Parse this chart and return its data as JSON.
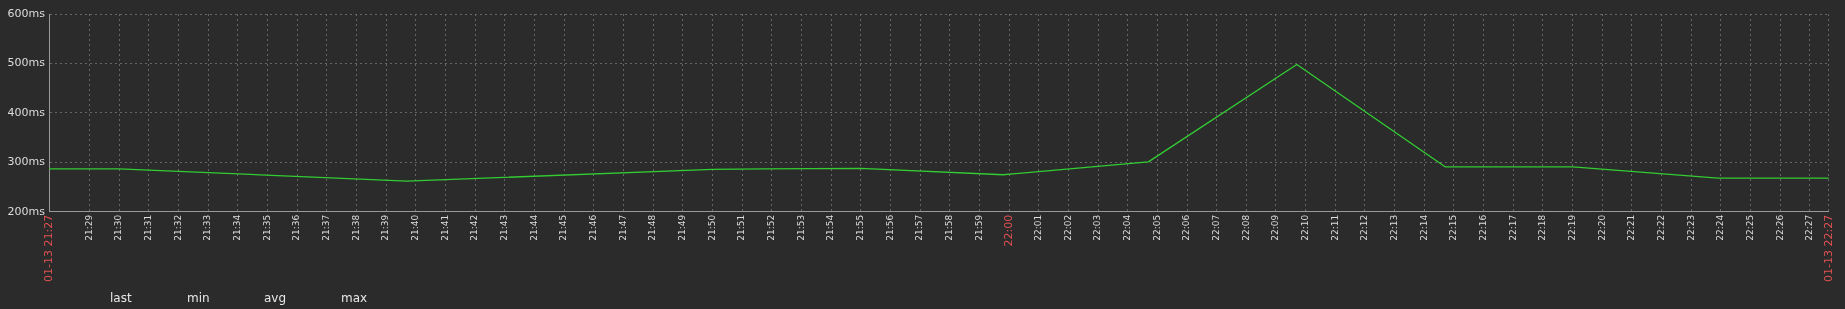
{
  "chart_data": {
    "type": "line",
    "x": [
      21.4606,
      21.5,
      21.6617,
      21.8333,
      21.9167,
      21.9967,
      22.0783,
      22.1617,
      22.245,
      22.3167,
      22.3983,
      22.4606
    ],
    "series": [
      {
        "color": "#33cc33",
        "values": [
          287,
          287,
          262,
          286,
          288,
          275,
          301,
          498,
          291,
          291,
          268,
          268
        ]
      }
    ],
    "xlim": [
      21.4606,
      22.4606
    ],
    "xticks": [
      {
        "value": 21.4606,
        "label": "01-13 21:27"
      },
      {
        "value": 21.4833,
        "label": "21:29"
      },
      {
        "value": 21.5,
        "label": "21:30"
      },
      {
        "value": 21.5167,
        "label": "21:31"
      },
      {
        "value": 21.5333,
        "label": "21:32"
      },
      {
        "value": 21.55,
        "label": "21:33"
      },
      {
        "value": 21.5667,
        "label": "21:34"
      },
      {
        "value": 21.5833,
        "label": "21:35"
      },
      {
        "value": 21.6,
        "label": "21:36"
      },
      {
        "value": 21.6167,
        "label": "21:37"
      },
      {
        "value": 21.6333,
        "label": "21:38"
      },
      {
        "value": 21.65,
        "label": "21:39"
      },
      {
        "value": 21.6667,
        "label": "21:40"
      },
      {
        "value": 21.6833,
        "label": "21:41"
      },
      {
        "value": 21.7,
        "label": "21:42"
      },
      {
        "value": 21.7167,
        "label": "21:43"
      },
      {
        "value": 21.7333,
        "label": "21:44"
      },
      {
        "value": 21.75,
        "label": "21:45"
      },
      {
        "value": 21.7667,
        "label": "21:46"
      },
      {
        "value": 21.7833,
        "label": "21:47"
      },
      {
        "value": 21.8,
        "label": "21:48"
      },
      {
        "value": 21.8167,
        "label": "21:49"
      },
      {
        "value": 21.8333,
        "label": "21:50"
      },
      {
        "value": 21.85,
        "label": "21:51"
      },
      {
        "value": 21.8667,
        "label": "21:52"
      },
      {
        "value": 21.8833,
        "label": "21:53"
      },
      {
        "value": 21.9,
        "label": "21:54"
      },
      {
        "value": 21.9167,
        "label": "21:55"
      },
      {
        "value": 21.9333,
        "label": "21:56"
      },
      {
        "value": 21.95,
        "label": "21:57"
      },
      {
        "value": 21.9667,
        "label": "21:58"
      },
      {
        "value": 21.9833,
        "label": "21:59"
      },
      {
        "value": 22,
        "label": "22:00"
      },
      {
        "value": 22.0167,
        "label": "22:01"
      },
      {
        "value": 22.0333,
        "label": "22:02"
      },
      {
        "value": 22.05,
        "label": "22:03"
      },
      {
        "value": 22.0667,
        "label": "22:04"
      },
      {
        "value": 22.0833,
        "label": "22:05"
      },
      {
        "value": 22.1,
        "label": "22:06"
      },
      {
        "value": 22.1167,
        "label": "22:07"
      },
      {
        "value": 22.1333,
        "label": "22:08"
      },
      {
        "value": 22.15,
        "label": "22:09"
      },
      {
        "value": 22.1667,
        "label": "22:10"
      },
      {
        "value": 22.1833,
        "label": "22:11"
      },
      {
        "value": 22.2,
        "label": "22:12"
      },
      {
        "value": 22.2167,
        "label": "22:13"
      },
      {
        "value": 22.2333,
        "label": "22:14"
      },
      {
        "value": 22.25,
        "label": "22:15"
      },
      {
        "value": 22.2667,
        "label": "22:16"
      },
      {
        "value": 22.2833,
        "label": "22:17"
      },
      {
        "value": 22.3,
        "label": "22:18"
      },
      {
        "value": 22.3167,
        "label": "22:19"
      },
      {
        "value": 22.3333,
        "label": "22:20"
      },
      {
        "value": 22.35,
        "label": "22:21"
      },
      {
        "value": 22.3667,
        "label": "22:22"
      },
      {
        "value": 22.3833,
        "label": "22:23"
      },
      {
        "value": 22.4,
        "label": "22:24"
      },
      {
        "value": 22.4167,
        "label": "22:25"
      },
      {
        "value": 22.4333,
        "label": "22:26"
      },
      {
        "value": 22.45,
        "label": "22:27"
      },
      {
        "value": 22.4606,
        "label": "01-13 22:27"
      }
    ],
    "ylim": [
      200,
      600
    ],
    "yticks": [
      {
        "value": 200,
        "label": "200ms"
      },
      {
        "value": 300,
        "label": "300ms"
      },
      {
        "value": 400,
        "label": "400ms"
      },
      {
        "value": 500,
        "label": "500ms"
      },
      {
        "value": 600,
        "label": "600ms"
      }
    ],
    "grid": true,
    "marker": "none",
    "line_style": "solid",
    "legend": false,
    "annotations": [
      "last",
      "min",
      "avg",
      "max"
    ]
  }
}
